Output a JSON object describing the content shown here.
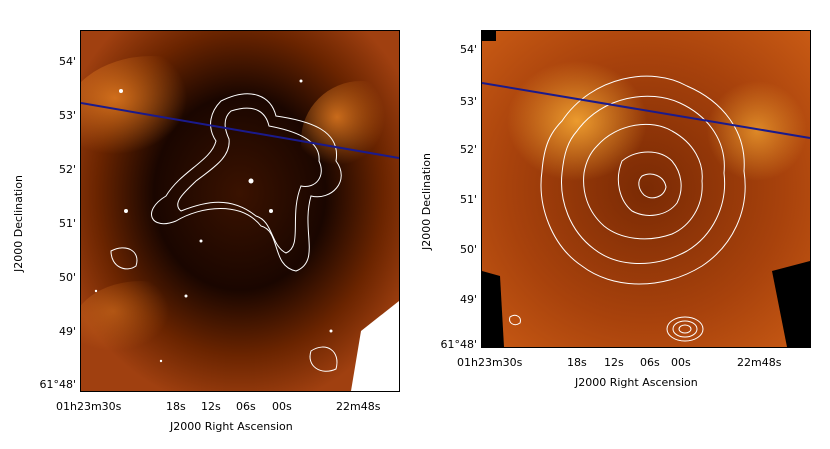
{
  "figure": {
    "left_panel": {
      "xlabel": "J2000 Right Ascension",
      "ylabel": "J2000 Declination",
      "yticks": [
        "54'",
        "53'",
        "52'",
        "51'",
        "50'",
        "49'",
        "61°48'"
      ],
      "xticks": [
        "01h23m30s",
        "18s",
        "12s",
        "06s",
        "00s",
        "22m48s"
      ]
    },
    "right_panel": {
      "xlabel": "J2000 Right Ascension",
      "ylabel": "J2000 Declination",
      "yticks": [
        "54'",
        "53'",
        "52'",
        "51'",
        "50'",
        "49'",
        "61°48'"
      ],
      "xticks": [
        "01h23m30s",
        "18s",
        "12s",
        "06s",
        "00s",
        "22m48s"
      ]
    }
  },
  "colors": {
    "background": "#000000",
    "emission": "#c8500a",
    "contour": "#ffffff",
    "line": "#1a1a8c"
  }
}
